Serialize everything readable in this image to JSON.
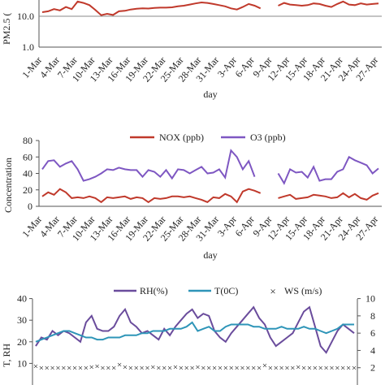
{
  "chart_data": [
    {
      "type": "line",
      "scale": "log",
      "xlabel": "day",
      "ylabel": "PM2.5 (",
      "yticks": [
        "10.0",
        "1.0"
      ],
      "categories": [
        "1-Mar",
        "4-Mar",
        "7-Mar",
        "10-Mar",
        "13-Mar",
        "16-Mar",
        "19-Mar",
        "22-Mar",
        "25-Mar",
        "28-Mar",
        "31-Mar",
        "3-Apr",
        "6-Apr",
        "9-Apr",
        "12-Apr",
        "15-Apr",
        "18-Apr",
        "21-Apr",
        "24-Apr",
        "27-Apr"
      ],
      "x": [
        1,
        2,
        3,
        4,
        5,
        6,
        7,
        8,
        9,
        10,
        11,
        12,
        13,
        14,
        15,
        16,
        17,
        18,
        19,
        20,
        21,
        22,
        23,
        24,
        25,
        26,
        27,
        28,
        29,
        30,
        31,
        32,
        33,
        34,
        35,
        36,
        37,
        38,
        39,
        40,
        41,
        42,
        43,
        44,
        45,
        46,
        47,
        48,
        49,
        50,
        51,
        52,
        53,
        54,
        55,
        56,
        57,
        58
      ],
      "series": [
        {
          "name": "",
          "color": "#c0392b",
          "values": [
            13.5,
            14.5,
            17,
            15.5,
            20,
            17,
            30,
            27,
            23,
            16,
            10.8,
            12,
            11,
            14.5,
            15,
            16.5,
            17.5,
            18,
            17.8,
            18.5,
            19,
            19,
            19.5,
            21,
            22,
            24,
            26,
            28,
            27,
            25,
            23,
            21,
            18,
            16.5,
            20,
            25,
            22,
            18,
            null,
            null,
            22,
            27,
            24,
            23,
            22,
            23,
            26,
            25,
            22,
            20,
            25,
            30,
            24,
            23,
            26,
            24,
            25,
            26
          ]
        }
      ]
    },
    {
      "type": "line",
      "xlabel": "day",
      "ylabel": "Concentration",
      "ylim": [
        0,
        80
      ],
      "yticks": [
        0,
        20,
        40,
        60,
        80
      ],
      "categories": [
        "1-Mar",
        "4-Mar",
        "7-Mar",
        "10-Mar",
        "13-Mar",
        "16-Mar",
        "19-Mar",
        "22-Mar",
        "25-Mar",
        "28-Mar",
        "31-Mar",
        "3-Apr",
        "6-Apr",
        "9-Apr",
        "12-Apr",
        "15-Apr",
        "18-Apr",
        "21-Apr",
        "24-Apr",
        "27-Apr"
      ],
      "x": [
        1,
        2,
        3,
        4,
        5,
        6,
        7,
        8,
        9,
        10,
        11,
        12,
        13,
        14,
        15,
        16,
        17,
        18,
        19,
        20,
        21,
        22,
        23,
        24,
        25,
        26,
        27,
        28,
        29,
        30,
        31,
        32,
        33,
        34,
        35,
        36,
        37,
        38,
        39,
        40,
        41,
        42,
        43,
        44,
        45,
        46,
        47,
        48,
        49,
        50,
        51,
        52,
        53,
        54,
        55,
        56,
        57,
        58
      ],
      "legend": "top",
      "series": [
        {
          "name": "NOX (ppb)",
          "color": "#c0392b",
          "values": [
            12,
            17,
            14,
            21,
            17,
            10,
            11,
            10,
            12,
            10,
            5,
            11,
            10,
            11,
            12,
            9,
            11,
            10,
            5,
            10,
            9,
            10,
            12,
            12,
            11,
            12,
            10,
            8,
            5,
            11,
            10,
            15,
            12,
            5,
            18,
            21,
            19,
            16,
            null,
            null,
            10,
            12,
            14,
            9,
            10,
            11,
            14,
            13,
            12,
            10,
            11,
            16,
            11,
            15,
            10,
            8,
            13,
            16
          ]
        },
        {
          "name": "O3 (ppb)",
          "color": "#7e57c2",
          "values": [
            45,
            55,
            56,
            48,
            52,
            55,
            45,
            31,
            33,
            36,
            40,
            45,
            44,
            47,
            45,
            44,
            44,
            36,
            44,
            42,
            36,
            44,
            34,
            45,
            44,
            40,
            44,
            48,
            40,
            41,
            45,
            35,
            68,
            60,
            45,
            55,
            36,
            null,
            null,
            null,
            40,
            28,
            45,
            41,
            42,
            35,
            48,
            31,
            33,
            33,
            42,
            45,
            60,
            56,
            53,
            50,
            40,
            46
          ]
        }
      ]
    },
    {
      "type": "line",
      "ylabel": "T, RH",
      "ylim": [
        0,
        40
      ],
      "yticks": [
        10,
        20,
        30,
        40
      ],
      "y2ticks": [
        2,
        4,
        6,
        8,
        10
      ],
      "ylim2": [
        0,
        10
      ],
      "legend": "top",
      "x": [
        1,
        2,
        3,
        4,
        5,
        6,
        7,
        8,
        9,
        10,
        11,
        12,
        13,
        14,
        15,
        16,
        17,
        18,
        19,
        20,
        21,
        22,
        23,
        24,
        25,
        26,
        27,
        28,
        29,
        30,
        31,
        32,
        33,
        34,
        35,
        36,
        37,
        38,
        39,
        40,
        41,
        42,
        43,
        44,
        45,
        46,
        47,
        48,
        49,
        50,
        51,
        52,
        53,
        54,
        55,
        56,
        57,
        58
      ],
      "series": [
        {
          "name": "RH(%)",
          "color": "#6a4c9c",
          "axis": "left",
          "values": [
            18,
            22,
            21,
            25,
            23,
            25,
            24,
            22,
            20,
            29,
            32,
            26,
            25,
            25,
            27,
            32,
            35,
            29,
            27,
            24,
            25,
            23,
            21,
            26,
            23,
            27,
            30,
            33,
            35,
            31,
            33,
            32,
            25,
            22,
            20,
            24,
            27,
            30,
            33,
            36,
            31,
            28,
            22,
            18,
            20,
            22,
            24,
            29,
            34,
            36,
            27,
            18,
            15,
            20,
            25,
            28,
            26,
            24
          ]
        },
        {
          "name": "T(0C)",
          "color": "#2e95b8",
          "axis": "left",
          "values": [
            20,
            21,
            22,
            23,
            24,
            25,
            25,
            24,
            23,
            22,
            22,
            21,
            21,
            22,
            22,
            22,
            23,
            23,
            23,
            24,
            24,
            25,
            25,
            25,
            26,
            26,
            26,
            27,
            29,
            25,
            26,
            27,
            25,
            25,
            27,
            28,
            28,
            28,
            28,
            27,
            27,
            26,
            26,
            26,
            27,
            26,
            26,
            26,
            27,
            26,
            26,
            25,
            24,
            25,
            26,
            28,
            28,
            28
          ]
        },
        {
          "name": "WS (m/s)",
          "color": "#e08a2c",
          "axis": "right",
          "values": [
            2.2,
            2.0,
            2.0,
            2.0,
            2.0,
            2.0,
            2.0,
            2.0,
            2.0,
            2.0,
            2.1,
            2.2,
            2.0,
            2.0,
            2.0,
            2.4,
            2.1,
            2.0,
            2.0,
            2.0,
            2.0,
            2.1,
            2.0,
            2.0,
            2.0,
            2.1,
            2.0,
            2.0,
            2.0,
            2.1,
            2.0,
            2.0,
            2.0,
            2.0,
            2.0,
            2.0,
            2.0,
            2.0,
            2.0,
            2.0,
            2.0,
            2.3,
            2.0,
            2.0,
            2.0,
            2.0,
            2.0,
            2.1,
            2.0,
            2.0,
            2.0,
            2.0,
            2.0,
            2.0,
            2.0,
            2.0,
            2.0,
            2.0
          ]
        }
      ]
    }
  ]
}
